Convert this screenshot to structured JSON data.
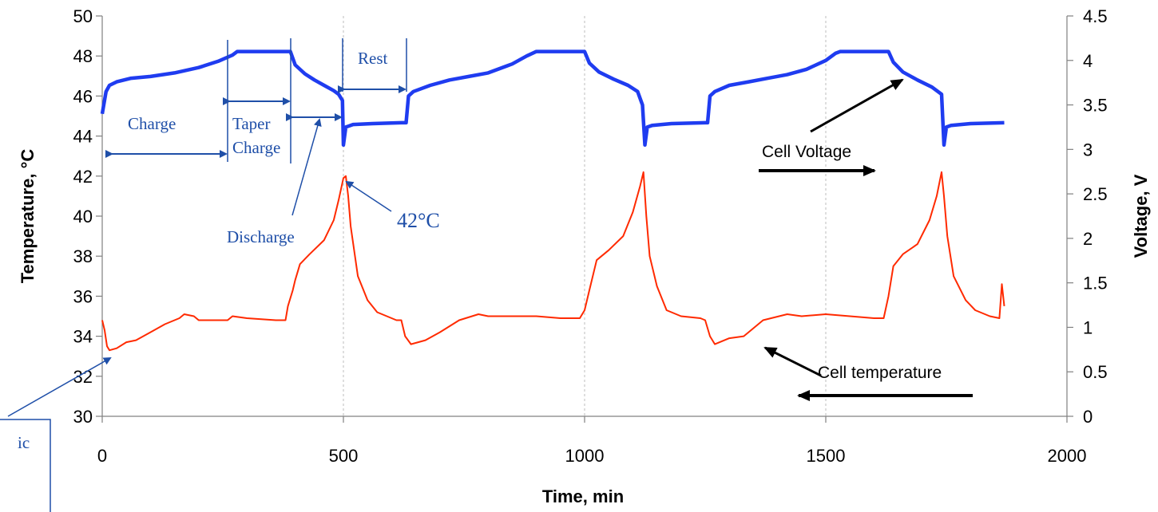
{
  "chart_data": {
    "type": "line",
    "title": "",
    "xlabel": "Time, min",
    "ylabel_left": "Temperature, °C",
    "ylabel_right": "Voltage, V",
    "xlim": [
      0,
      2000
    ],
    "ylim_left": [
      30,
      50
    ],
    "ylim_right": [
      0,
      4.5
    ],
    "x_ticks": [
      0,
      500,
      1000,
      1500,
      2000
    ],
    "y_left_ticks": [
      30,
      32,
      34,
      36,
      38,
      40,
      42,
      44,
      46,
      48,
      50
    ],
    "y_right_ticks": [
      0,
      0.5,
      1,
      1.5,
      2,
      2.5,
      3,
      3.5,
      4,
      4.5
    ],
    "grid": "vertical dashed at x ticks",
    "series": [
      {
        "name": "Cell Voltage",
        "axis": "right",
        "color": "#1f3cf0",
        "points": [
          [
            0,
            3.4
          ],
          [
            8,
            3.65
          ],
          [
            15,
            3.72
          ],
          [
            30,
            3.76
          ],
          [
            60,
            3.8
          ],
          [
            100,
            3.82
          ],
          [
            150,
            3.86
          ],
          [
            200,
            3.92
          ],
          [
            240,
            3.99
          ],
          [
            270,
            4.06
          ],
          [
            280,
            4.1
          ],
          [
            300,
            4.1
          ],
          [
            390,
            4.1
          ],
          [
            400,
            3.95
          ],
          [
            420,
            3.85
          ],
          [
            440,
            3.78
          ],
          [
            460,
            3.72
          ],
          [
            480,
            3.66
          ],
          [
            490,
            3.62
          ],
          [
            498,
            3.55
          ],
          [
            500,
            3.05
          ],
          [
            505,
            3.25
          ],
          [
            510,
            3.26
          ],
          [
            520,
            3.28
          ],
          [
            560,
            3.29
          ],
          [
            620,
            3.3
          ],
          [
            630,
            3.3
          ],
          [
            635,
            3.6
          ],
          [
            645,
            3.65
          ],
          [
            680,
            3.72
          ],
          [
            720,
            3.78
          ],
          [
            760,
            3.82
          ],
          [
            800,
            3.86
          ],
          [
            850,
            3.96
          ],
          [
            880,
            4.05
          ],
          [
            900,
            4.1
          ],
          [
            1000,
            4.1
          ],
          [
            1010,
            3.97
          ],
          [
            1030,
            3.87
          ],
          [
            1060,
            3.79
          ],
          [
            1090,
            3.72
          ],
          [
            1110,
            3.65
          ],
          [
            1120,
            3.5
          ],
          [
            1125,
            3.05
          ],
          [
            1130,
            3.25
          ],
          [
            1140,
            3.27
          ],
          [
            1180,
            3.29
          ],
          [
            1250,
            3.3
          ],
          [
            1255,
            3.3
          ],
          [
            1260,
            3.6
          ],
          [
            1270,
            3.65
          ],
          [
            1300,
            3.72
          ],
          [
            1340,
            3.76
          ],
          [
            1380,
            3.8
          ],
          [
            1420,
            3.84
          ],
          [
            1460,
            3.9
          ],
          [
            1500,
            4.0
          ],
          [
            1520,
            4.08
          ],
          [
            1530,
            4.1
          ],
          [
            1630,
            4.1
          ],
          [
            1640,
            3.98
          ],
          [
            1660,
            3.87
          ],
          [
            1690,
            3.78
          ],
          [
            1720,
            3.7
          ],
          [
            1740,
            3.62
          ],
          [
            1745,
            3.05
          ],
          [
            1750,
            3.25
          ],
          [
            1760,
            3.27
          ],
          [
            1800,
            3.29
          ],
          [
            1870,
            3.3
          ]
        ]
      },
      {
        "name": "Cell temperature",
        "axis": "left",
        "color": "#ff2a00",
        "points": [
          [
            0,
            34.8
          ],
          [
            5,
            34.3
          ],
          [
            10,
            33.5
          ],
          [
            15,
            33.3
          ],
          [
            30,
            33.4
          ],
          [
            50,
            33.7
          ],
          [
            70,
            33.8
          ],
          [
            100,
            34.2
          ],
          [
            130,
            34.6
          ],
          [
            160,
            34.9
          ],
          [
            170,
            35.1
          ],
          [
            190,
            35.0
          ],
          [
            200,
            34.8
          ],
          [
            260,
            34.8
          ],
          [
            270,
            35.0
          ],
          [
            300,
            34.9
          ],
          [
            360,
            34.8
          ],
          [
            380,
            34.8
          ],
          [
            385,
            35.5
          ],
          [
            395,
            36.3
          ],
          [
            400,
            36.8
          ],
          [
            410,
            37.6
          ],
          [
            430,
            38.1
          ],
          [
            460,
            38.8
          ],
          [
            480,
            39.8
          ],
          [
            490,
            40.8
          ],
          [
            500,
            41.9
          ],
          [
            505,
            42.0
          ],
          [
            510,
            41.0
          ],
          [
            515,
            39.5
          ],
          [
            530,
            37.0
          ],
          [
            550,
            35.8
          ],
          [
            570,
            35.2
          ],
          [
            600,
            34.9
          ],
          [
            610,
            34.8
          ],
          [
            620,
            34.8
          ],
          [
            628,
            34.0
          ],
          [
            640,
            33.6
          ],
          [
            670,
            33.8
          ],
          [
            700,
            34.2
          ],
          [
            740,
            34.8
          ],
          [
            780,
            35.1
          ],
          [
            800,
            35.0
          ],
          [
            850,
            35.0
          ],
          [
            900,
            35.0
          ],
          [
            950,
            34.9
          ],
          [
            990,
            34.9
          ],
          [
            1000,
            35.3
          ],
          [
            1010,
            36.3
          ],
          [
            1025,
            37.8
          ],
          [
            1050,
            38.3
          ],
          [
            1080,
            39.0
          ],
          [
            1100,
            40.2
          ],
          [
            1115,
            41.5
          ],
          [
            1122,
            42.2
          ],
          [
            1128,
            40.0
          ],
          [
            1135,
            38.0
          ],
          [
            1150,
            36.5
          ],
          [
            1170,
            35.3
          ],
          [
            1200,
            35.0
          ],
          [
            1240,
            34.9
          ],
          [
            1250,
            34.8
          ],
          [
            1260,
            34.0
          ],
          [
            1270,
            33.6
          ],
          [
            1300,
            33.9
          ],
          [
            1330,
            34.0
          ],
          [
            1370,
            34.8
          ],
          [
            1420,
            35.1
          ],
          [
            1450,
            35.0
          ],
          [
            1500,
            35.1
          ],
          [
            1550,
            35.0
          ],
          [
            1600,
            34.9
          ],
          [
            1620,
            34.9
          ],
          [
            1630,
            36.0
          ],
          [
            1640,
            37.5
          ],
          [
            1660,
            38.1
          ],
          [
            1690,
            38.6
          ],
          [
            1715,
            39.8
          ],
          [
            1730,
            41.0
          ],
          [
            1740,
            42.2
          ],
          [
            1745,
            41.0
          ],
          [
            1752,
            39.0
          ],
          [
            1765,
            37.0
          ],
          [
            1790,
            35.8
          ],
          [
            1810,
            35.3
          ],
          [
            1840,
            35.0
          ],
          [
            1860,
            34.9
          ],
          [
            1865,
            36.6
          ],
          [
            1870,
            35.5
          ]
        ]
      }
    ],
    "annotations": {
      "charge": "Charge",
      "taper_charge_1": "Taper",
      "taper_charge_2": "Charge",
      "rest": "Rest",
      "discharge": "Discharge",
      "peak_temp": "42°C",
      "cell_voltage": "Cell Voltage",
      "cell_temperature": "Cell temperature",
      "ambient_fragment": "ic"
    },
    "colors": {
      "annotation_blue": "#1f4fa8",
      "arrow_black": "#000000"
    }
  }
}
